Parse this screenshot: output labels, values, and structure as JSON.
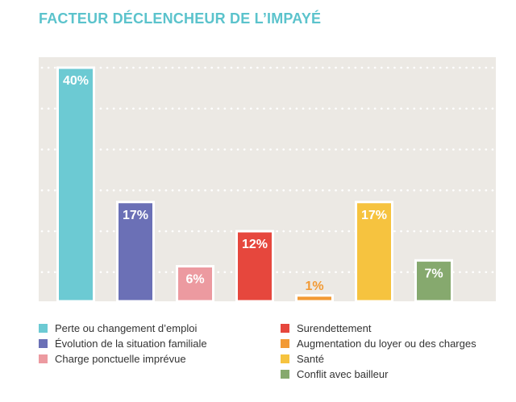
{
  "chart_data": {
    "type": "bar",
    "title": "FACTEUR DÉCLENCHEUR DE L’IMPAYÉ",
    "xlabel": "",
    "ylabel": "",
    "ylim": [
      0,
      45
    ],
    "grid": true,
    "legend_position": "bottom",
    "categories": [
      "Perte ou changement d’emploi",
      "Évolution de la situation familiale",
      "Charge ponctuelle imprévue",
      "Surendettement",
      "Augmentation du loyer ou des charges",
      "Santé",
      "Conflit avec bailleur"
    ],
    "values": [
      40,
      17,
      6,
      12,
      1,
      17,
      7
    ],
    "data_labels": [
      "40%",
      "17%",
      "6%",
      "12%",
      "1%",
      "17%",
      "7%"
    ],
    "colors": [
      "#6ccad3",
      "#6b70b6",
      "#ec9aa0",
      "#e6473d",
      "#f29a35",
      "#f6c33f",
      "#86a96e"
    ]
  },
  "style": {
    "title_color": "#5bc3cc",
    "plot_background": "#ece9e4",
    "label_on_bar": "#ffffff",
    "label_above_bar": "#f29a35"
  }
}
